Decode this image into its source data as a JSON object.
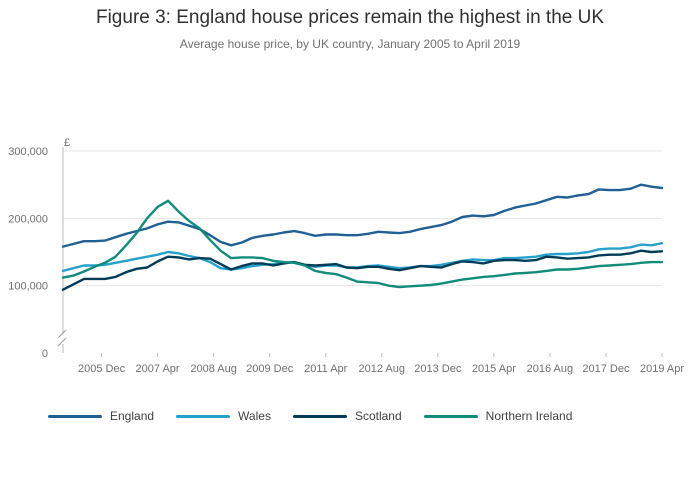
{
  "chart_data": {
    "type": "line",
    "title": "Figure 3: England house prices remain the highest in the UK",
    "subtitle": "Average house price, by UK country, January 2005 to April 2019",
    "ylabel": "£",
    "xlabel": "",
    "ylim": [
      0,
      300000
    ],
    "yticks": [
      {
        "value": 0,
        "label": "0"
      },
      {
        "value": 100000,
        "label": "100,000"
      },
      {
        "value": 200000,
        "label": "200,000"
      },
      {
        "value": 300000,
        "label": "300,000"
      }
    ],
    "axis_break": true,
    "xlim": [
      2005.0,
      2019.25
    ],
    "xticks": [
      {
        "value": 2005.917,
        "label": "2005 Dec"
      },
      {
        "value": 2007.25,
        "label": "2007 Apr"
      },
      {
        "value": 2008.583,
        "label": "2008 Aug"
      },
      {
        "value": 2009.917,
        "label": "2009 Dec"
      },
      {
        "value": 2011.25,
        "label": "2011 Apr"
      },
      {
        "value": 2012.583,
        "label": "2012 Aug"
      },
      {
        "value": 2013.917,
        "label": "2013 Dec"
      },
      {
        "value": 2015.25,
        "label": "2015 Apr"
      },
      {
        "value": 2016.583,
        "label": "2016 Aug"
      },
      {
        "value": 2017.917,
        "label": "2017 Dec"
      },
      {
        "value": 2019.25,
        "label": "2019 Apr"
      }
    ],
    "grid": true,
    "legend_position": "bottom-left",
    "series": [
      {
        "name": "England",
        "color": "#206095",
        "points": [
          [
            2005.0,
            158000
          ],
          [
            2005.25,
            162000
          ],
          [
            2005.5,
            166000
          ],
          [
            2005.75,
            166000
          ],
          [
            2006.0,
            167000
          ],
          [
            2006.25,
            172000
          ],
          [
            2006.5,
            177000
          ],
          [
            2006.75,
            181000
          ],
          [
            2007.0,
            185000
          ],
          [
            2007.25,
            191000
          ],
          [
            2007.5,
            195000
          ],
          [
            2007.75,
            194000
          ],
          [
            2008.0,
            189000
          ],
          [
            2008.25,
            184000
          ],
          [
            2008.5,
            175000
          ],
          [
            2008.75,
            165000
          ],
          [
            2009.0,
            160000
          ],
          [
            2009.25,
            164000
          ],
          [
            2009.5,
            171000
          ],
          [
            2009.75,
            174000
          ],
          [
            2010.0,
            176000
          ],
          [
            2010.25,
            179000
          ],
          [
            2010.5,
            181000
          ],
          [
            2010.75,
            178000
          ],
          [
            2011.0,
            174000
          ],
          [
            2011.25,
            176000
          ],
          [
            2011.5,
            176000
          ],
          [
            2011.75,
            175000
          ],
          [
            2012.0,
            175000
          ],
          [
            2012.25,
            177000
          ],
          [
            2012.5,
            180000
          ],
          [
            2012.75,
            179000
          ],
          [
            2013.0,
            178000
          ],
          [
            2013.25,
            180000
          ],
          [
            2013.5,
            184000
          ],
          [
            2013.75,
            187000
          ],
          [
            2014.0,
            190000
          ],
          [
            2014.25,
            195000
          ],
          [
            2014.5,
            202000
          ],
          [
            2014.75,
            204000
          ],
          [
            2015.0,
            203000
          ],
          [
            2015.25,
            205000
          ],
          [
            2015.5,
            211000
          ],
          [
            2015.75,
            216000
          ],
          [
            2016.0,
            219000
          ],
          [
            2016.25,
            222000
          ],
          [
            2016.5,
            227000
          ],
          [
            2016.75,
            232000
          ],
          [
            2017.0,
            231000
          ],
          [
            2017.25,
            234000
          ],
          [
            2017.5,
            236000
          ],
          [
            2017.75,
            243000
          ],
          [
            2018.0,
            242000
          ],
          [
            2018.25,
            242000
          ],
          [
            2018.5,
            244000
          ],
          [
            2018.75,
            250000
          ],
          [
            2019.0,
            247000
          ],
          [
            2019.25,
            245000
          ]
        ]
      },
      {
        "name": "Wales",
        "color": "#27a0cc",
        "points": [
          [
            2005.0,
            122000
          ],
          [
            2005.25,
            126000
          ],
          [
            2005.5,
            130000
          ],
          [
            2005.75,
            130000
          ],
          [
            2006.0,
            131000
          ],
          [
            2006.25,
            134000
          ],
          [
            2006.5,
            137000
          ],
          [
            2006.75,
            140000
          ],
          [
            2007.0,
            143000
          ],
          [
            2007.25,
            146000
          ],
          [
            2007.5,
            150000
          ],
          [
            2007.75,
            148000
          ],
          [
            2008.0,
            144000
          ],
          [
            2008.25,
            141000
          ],
          [
            2008.5,
            135000
          ],
          [
            2008.75,
            126000
          ],
          [
            2009.0,
            124000
          ],
          [
            2009.25,
            126000
          ],
          [
            2009.5,
            129000
          ],
          [
            2009.75,
            131000
          ],
          [
            2010.0,
            132000
          ],
          [
            2010.25,
            134000
          ],
          [
            2010.5,
            135000
          ],
          [
            2010.75,
            131000
          ],
          [
            2011.0,
            128000
          ],
          [
            2011.25,
            130000
          ],
          [
            2011.5,
            130000
          ],
          [
            2011.75,
            127000
          ],
          [
            2012.0,
            127000
          ],
          [
            2012.25,
            129000
          ],
          [
            2012.5,
            130000
          ],
          [
            2012.75,
            128000
          ],
          [
            2013.0,
            126000
          ],
          [
            2013.25,
            127000
          ],
          [
            2013.5,
            129000
          ],
          [
            2013.75,
            129000
          ],
          [
            2014.0,
            131000
          ],
          [
            2014.25,
            134000
          ],
          [
            2014.5,
            137000
          ],
          [
            2014.75,
            139000
          ],
          [
            2015.0,
            138000
          ],
          [
            2015.25,
            138000
          ],
          [
            2015.5,
            141000
          ],
          [
            2015.75,
            141000
          ],
          [
            2016.0,
            142000
          ],
          [
            2016.25,
            143000
          ],
          [
            2016.5,
            146000
          ],
          [
            2016.75,
            147000
          ],
          [
            2017.0,
            147000
          ],
          [
            2017.25,
            148000
          ],
          [
            2017.5,
            150000
          ],
          [
            2017.75,
            154000
          ],
          [
            2018.0,
            155000
          ],
          [
            2018.25,
            155000
          ],
          [
            2018.5,
            157000
          ],
          [
            2018.75,
            161000
          ],
          [
            2019.0,
            160000
          ],
          [
            2019.25,
            163000
          ]
        ]
      },
      {
        "name": "Scotland",
        "color": "#003c57",
        "points": [
          [
            2005.0,
            94000
          ],
          [
            2005.25,
            102000
          ],
          [
            2005.5,
            110000
          ],
          [
            2005.75,
            110000
          ],
          [
            2006.0,
            110000
          ],
          [
            2006.25,
            113000
          ],
          [
            2006.5,
            120000
          ],
          [
            2006.75,
            125000
          ],
          [
            2007.0,
            127000
          ],
          [
            2007.25,
            136000
          ],
          [
            2007.5,
            143000
          ],
          [
            2007.75,
            142000
          ],
          [
            2008.0,
            139000
          ],
          [
            2008.25,
            141000
          ],
          [
            2008.5,
            140000
          ],
          [
            2008.75,
            132000
          ],
          [
            2009.0,
            124000
          ],
          [
            2009.25,
            129000
          ],
          [
            2009.5,
            133000
          ],
          [
            2009.75,
            133000
          ],
          [
            2010.0,
            130000
          ],
          [
            2010.25,
            133000
          ],
          [
            2010.5,
            135000
          ],
          [
            2010.75,
            131000
          ],
          [
            2011.0,
            130000
          ],
          [
            2011.25,
            131000
          ],
          [
            2011.5,
            132000
          ],
          [
            2011.75,
            127000
          ],
          [
            2012.0,
            126000
          ],
          [
            2012.25,
            128000
          ],
          [
            2012.5,
            128000
          ],
          [
            2012.75,
            125000
          ],
          [
            2013.0,
            123000
          ],
          [
            2013.25,
            126000
          ],
          [
            2013.5,
            129000
          ],
          [
            2013.75,
            128000
          ],
          [
            2014.0,
            127000
          ],
          [
            2014.25,
            132000
          ],
          [
            2014.5,
            136000
          ],
          [
            2014.75,
            135000
          ],
          [
            2015.0,
            133000
          ],
          [
            2015.25,
            137000
          ],
          [
            2015.5,
            138000
          ],
          [
            2015.75,
            138000
          ],
          [
            2016.0,
            137000
          ],
          [
            2016.25,
            138000
          ],
          [
            2016.5,
            143000
          ],
          [
            2016.75,
            142000
          ],
          [
            2017.0,
            140000
          ],
          [
            2017.25,
            141000
          ],
          [
            2017.5,
            142000
          ],
          [
            2017.75,
            145000
          ],
          [
            2018.0,
            146000
          ],
          [
            2018.25,
            146000
          ],
          [
            2018.5,
            148000
          ],
          [
            2018.75,
            152000
          ],
          [
            2019.0,
            150000
          ],
          [
            2019.25,
            151000
          ]
        ]
      },
      {
        "name": "Northern Ireland",
        "color": "#118c7b",
        "points": [
          [
            2005.0,
            112000
          ],
          [
            2005.25,
            115000
          ],
          [
            2005.5,
            121000
          ],
          [
            2005.75,
            128000
          ],
          [
            2006.0,
            134000
          ],
          [
            2006.25,
            143000
          ],
          [
            2006.5,
            160000
          ],
          [
            2006.75,
            178000
          ],
          [
            2007.0,
            200000
          ],
          [
            2007.25,
            217000
          ],
          [
            2007.5,
            226000
          ],
          [
            2007.75,
            210000
          ],
          [
            2008.0,
            196000
          ],
          [
            2008.25,
            185000
          ],
          [
            2008.5,
            168000
          ],
          [
            2008.75,
            152000
          ],
          [
            2009.0,
            141000
          ],
          [
            2009.25,
            142000
          ],
          [
            2009.5,
            142000
          ],
          [
            2009.75,
            141000
          ],
          [
            2010.0,
            137000
          ],
          [
            2010.25,
            135000
          ],
          [
            2010.5,
            134000
          ],
          [
            2010.75,
            130000
          ],
          [
            2011.0,
            122000
          ],
          [
            2011.25,
            119000
          ],
          [
            2011.5,
            117000
          ],
          [
            2011.75,
            112000
          ],
          [
            2012.0,
            106000
          ],
          [
            2012.25,
            105000
          ],
          [
            2012.5,
            104000
          ],
          [
            2012.75,
            100000
          ],
          [
            2013.0,
            98000
          ],
          [
            2013.25,
            99000
          ],
          [
            2013.5,
            100000
          ],
          [
            2013.75,
            101000
          ],
          [
            2014.0,
            103000
          ],
          [
            2014.25,
            106000
          ],
          [
            2014.5,
            109000
          ],
          [
            2014.75,
            111000
          ],
          [
            2015.0,
            113000
          ],
          [
            2015.25,
            114000
          ],
          [
            2015.5,
            116000
          ],
          [
            2015.75,
            118000
          ],
          [
            2016.0,
            119000
          ],
          [
            2016.25,
            120000
          ],
          [
            2016.5,
            122000
          ],
          [
            2016.75,
            124000
          ],
          [
            2017.0,
            124000
          ],
          [
            2017.25,
            125000
          ],
          [
            2017.5,
            127000
          ],
          [
            2017.75,
            129000
          ],
          [
            2018.0,
            130000
          ],
          [
            2018.25,
            131000
          ],
          [
            2018.5,
            132000
          ],
          [
            2018.75,
            134000
          ],
          [
            2019.0,
            135000
          ],
          [
            2019.25,
            135000
          ]
        ]
      }
    ]
  }
}
